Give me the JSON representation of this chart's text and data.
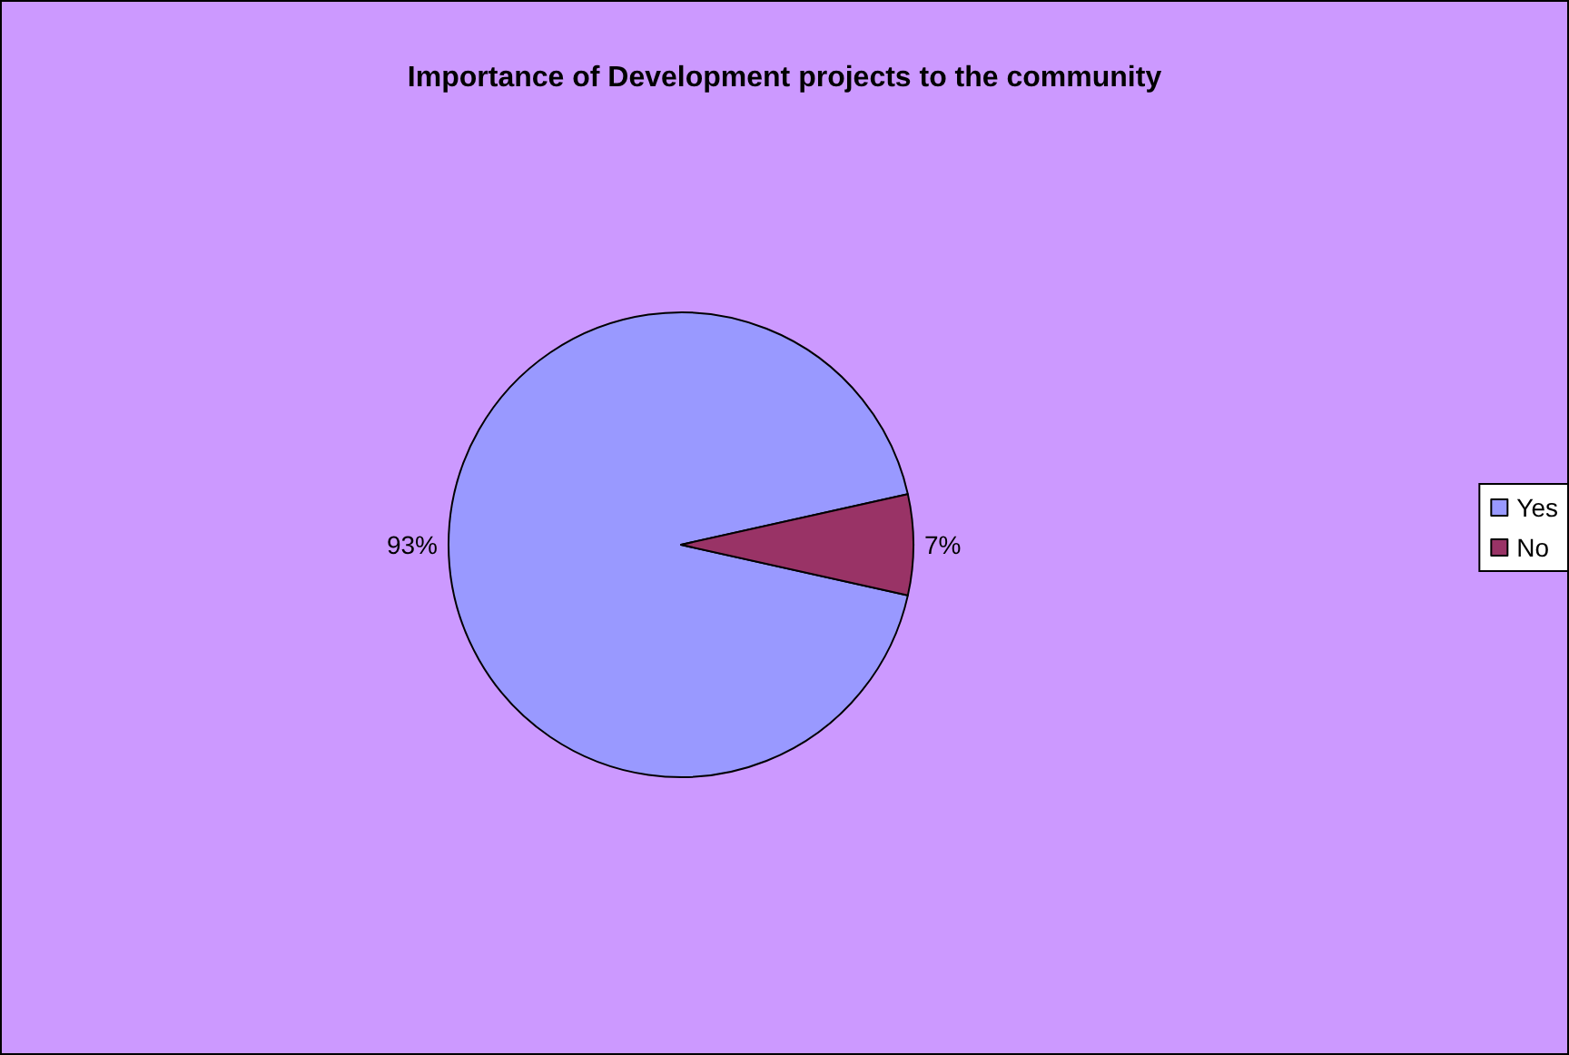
{
  "chart_data": {
    "type": "pie",
    "title": "Importance of Development projects to the community",
    "categories": [
      "Yes",
      "No"
    ],
    "values": [
      93,
      7
    ],
    "value_labels": [
      "93%",
      "7%"
    ],
    "colors": [
      "#9999ff",
      "#993366"
    ],
    "legend": "right"
  }
}
